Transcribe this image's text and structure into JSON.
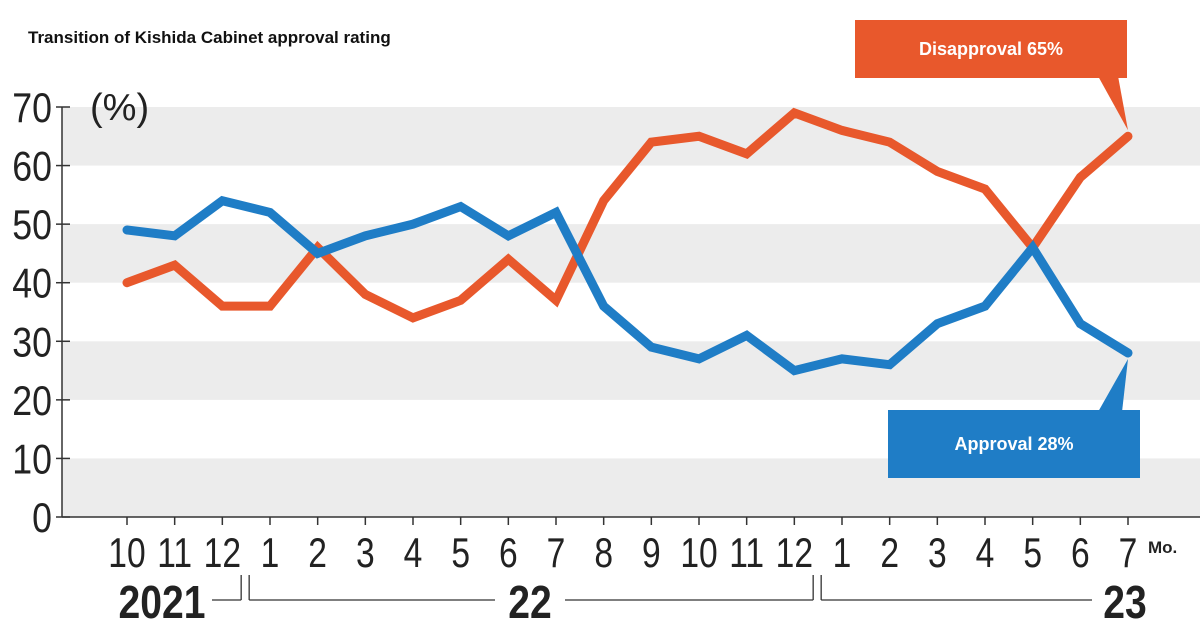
{
  "chart_data": {
    "type": "line",
    "title": "Transition of Kishida Cabinet approval rating",
    "ylabel": "(%)",
    "xlabel": "Mo.",
    "ylim": [
      0,
      70
    ],
    "yticks": [
      0,
      10,
      20,
      30,
      40,
      50,
      60,
      70
    ],
    "grid": "alternating horizontal bands",
    "categories": [
      "10",
      "11",
      "12",
      "1",
      "2",
      "3",
      "4",
      "5",
      "6",
      "7",
      "8",
      "9",
      "10",
      "11",
      "12",
      "1",
      "2",
      "3",
      "4",
      "5",
      "6",
      "7"
    ],
    "year_labels": [
      {
        "label": "2021",
        "span": [
          "10",
          "12"
        ]
      },
      {
        "label": "22",
        "span": [
          "1",
          "12"
        ]
      },
      {
        "label": "23",
        "span": [
          "1",
          "7"
        ]
      }
    ],
    "series": [
      {
        "name": "Disapproval",
        "color": "#e8582c",
        "values": [
          40,
          43,
          36,
          36,
          46,
          38,
          34,
          37,
          44,
          37,
          54,
          64,
          65,
          62,
          69,
          66,
          64,
          59,
          56,
          46,
          58,
          65
        ]
      },
      {
        "name": "Approval",
        "color": "#1f7dc6",
        "values": [
          49,
          48,
          54,
          52,
          45,
          48,
          50,
          53,
          48,
          52,
          36,
          29,
          27,
          31,
          25,
          27,
          26,
          33,
          36,
          46,
          33,
          28
        ]
      }
    ],
    "annotations": [
      {
        "series": "Disapproval",
        "text": "Disapproval  65%"
      },
      {
        "series": "Approval",
        "text": "Approval  28%"
      }
    ]
  }
}
